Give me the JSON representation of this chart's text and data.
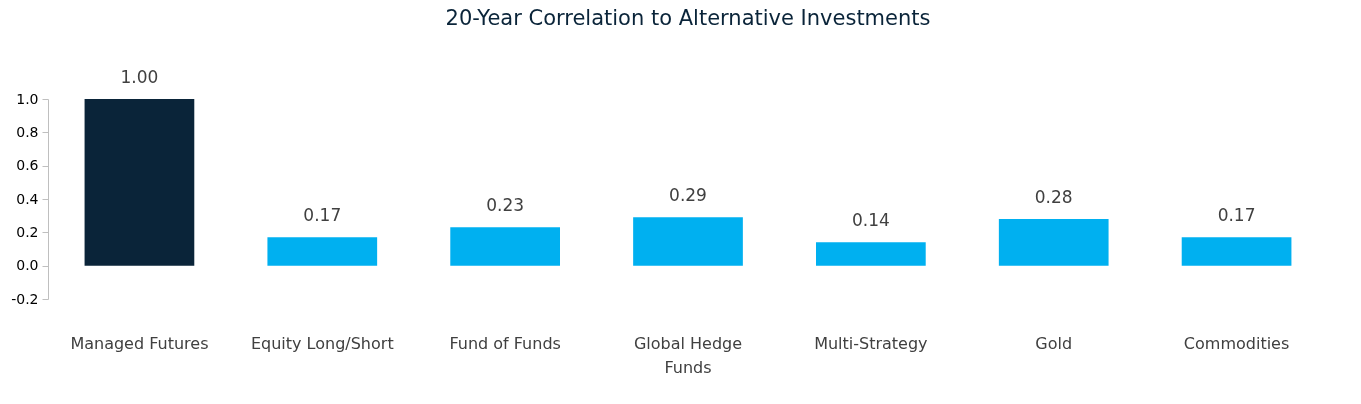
{
  "chart_data": {
    "type": "bar",
    "title": "20-Year Correlation to Alternative Investments",
    "categories": [
      "Managed Futures",
      "Equity Long/Short",
      "Fund of Funds",
      "Global Hedge Funds",
      "Multi-Strategy",
      "Gold",
      "Commodities"
    ],
    "values": [
      1.0,
      0.17,
      0.23,
      0.29,
      0.14,
      0.28,
      0.17
    ],
    "colors": [
      "#0a2439",
      "#00b0f0",
      "#00b0f0",
      "#00b0f0",
      "#00b0f0",
      "#00b0f0",
      "#00b0f0"
    ],
    "ylim": [
      -0.2,
      1.0
    ],
    "yticks": [
      {
        "value": -0.2,
        "label": "-0.2"
      },
      {
        "value": 0,
        "label": "0.0"
      },
      {
        "value": 0.2,
        "label": "0.2"
      },
      {
        "value": 0.4,
        "label": "0.4"
      },
      {
        "value": 0.6,
        "label": "0.6"
      },
      {
        "value": 0.8,
        "label": "0.8"
      },
      {
        "value": 1.0,
        "label": "1.0"
      }
    ],
    "value_labels": [
      "1.00",
      "0.17",
      "0.23",
      "0.29",
      "0.14",
      "0.28",
      "0.17"
    ],
    "grid": false
  }
}
